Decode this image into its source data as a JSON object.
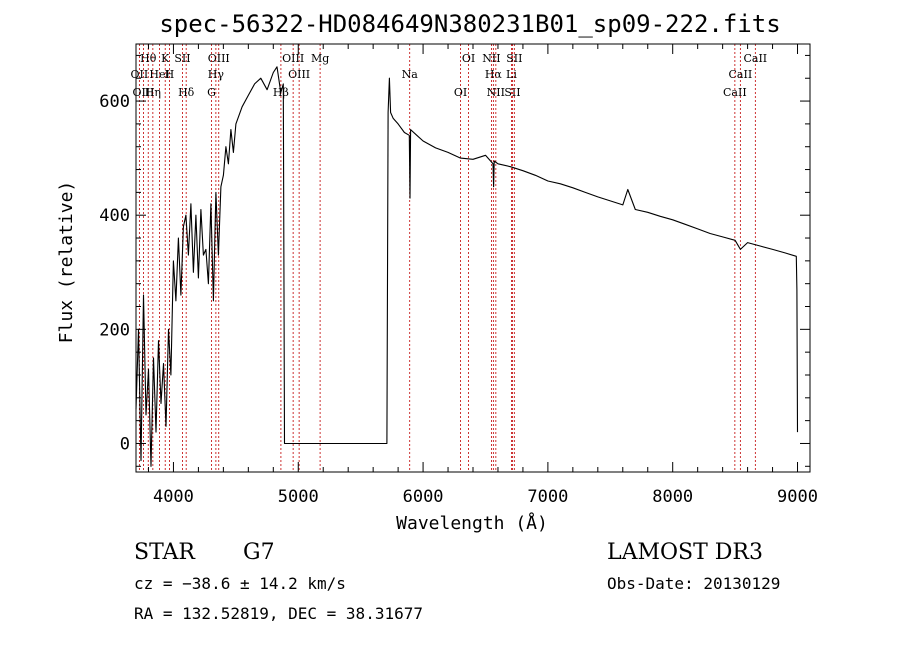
{
  "chart_data": {
    "type": "line",
    "title": "spec-56322-HD084649N380231B01_sp09-222.fits",
    "xlabel": "Wavelength (Å)",
    "ylabel": "Flux (relative)",
    "xlim": [
      3700,
      9100
    ],
    "ylim": [
      -50,
      700
    ],
    "xticks": [
      4000,
      5000,
      6000,
      7000,
      8000,
      9000
    ],
    "yticks": [
      0,
      200,
      400,
      600
    ],
    "grid": false,
    "series": [
      {
        "x": [
          3700,
          3720,
          3740,
          3760,
          3780,
          3800,
          3820,
          3840,
          3860,
          3880,
          3900,
          3920,
          3940,
          3960,
          3980,
          4000,
          4020,
          4040,
          4060,
          4080,
          4100,
          4120,
          4140,
          4160,
          4180,
          4200,
          4220,
          4240,
          4260,
          4280,
          4300,
          4320,
          4340,
          4360,
          4380,
          4400,
          4420,
          4440,
          4460,
          4480,
          4500,
          4550,
          4600,
          4650,
          4700,
          4750,
          4800,
          4830,
          4860,
          4880,
          4890,
          5000,
          5200,
          5400,
          5600,
          5710,
          5720,
          5730,
          5740,
          5760,
          5800,
          5850,
          5890,
          5895,
          5900,
          5950,
          6000,
          6100,
          6200,
          6300,
          6400,
          6500,
          6560,
          6565,
          6570,
          6600,
          6700,
          6800,
          6900,
          7000,
          7100,
          7200,
          7300,
          7400,
          7500,
          7600,
          7640,
          7700,
          7800,
          7900,
          8000,
          8100,
          8200,
          8300,
          8400,
          8500,
          8542,
          8600,
          8700,
          8800,
          8900,
          8990,
          8995,
          9000
        ],
        "values": [
          60,
          200,
          -30,
          260,
          50,
          130,
          -40,
          150,
          20,
          180,
          70,
          140,
          30,
          200,
          120,
          320,
          250,
          360,
          260,
          380,
          400,
          330,
          420,
          300,
          400,
          290,
          410,
          330,
          340,
          280,
          420,
          250,
          440,
          330,
          450,
          470,
          520,
          490,
          550,
          510,
          560,
          590,
          610,
          630,
          640,
          620,
          650,
          660,
          615,
          630,
          0,
          0,
          0,
          0,
          0,
          0,
          580,
          640,
          580,
          570,
          560,
          545,
          540,
          430,
          550,
          540,
          530,
          518,
          510,
          500,
          498,
          505,
          490,
          450,
          495,
          490,
          485,
          478,
          470,
          460,
          455,
          448,
          440,
          432,
          425,
          418,
          445,
          410,
          405,
          398,
          392,
          384,
          376,
          368,
          362,
          356,
          340,
          352,
          346,
          340,
          334,
          328,
          270,
          20
        ]
      }
    ],
    "line_markers": [
      {
        "label": "Hθ",
        "x": 3798
      },
      {
        "label": "OII",
        "x": 3727
      },
      {
        "label": "OIII",
        "x": 3760
      },
      {
        "label": "K",
        "x": 3934
      },
      {
        "label": "HeI",
        "x": 3889
      },
      {
        "label": "Hη",
        "x": 3835
      },
      {
        "label": "SII",
        "x": 4072
      },
      {
        "label": "H",
        "x": 3968
      },
      {
        "label": "Hδ",
        "x": 4102
      },
      {
        "label": "OIII",
        "x": 4363
      },
      {
        "label": "Hγ",
        "x": 4340
      },
      {
        "label": "G",
        "x": 4305
      },
      {
        "label": "OIII",
        "x": 4959
      },
      {
        "label": "OIII",
        "x": 5007
      },
      {
        "label": "Hβ",
        "x": 4861
      },
      {
        "label": "Mg",
        "x": 5175
      },
      {
        "label": "Na",
        "x": 5893
      },
      {
        "label": "OI",
        "x": 6300
      },
      {
        "label": "OI",
        "x": 6364
      },
      {
        "label": "Hα",
        "x": 6563
      },
      {
        "label": "SII",
        "x": 6716
      },
      {
        "label": "NII",
        "x": 6548
      },
      {
        "label": "Li",
        "x": 6708
      },
      {
        "label": "NII",
        "x": 6583
      },
      {
        "label": "SII",
        "x": 6731
      },
      {
        "label": "CaII",
        "x": 8542
      },
      {
        "label": "CaII",
        "x": 8498
      },
      {
        "label": "CaII",
        "x": 8662
      }
    ]
  },
  "info": {
    "object_type": "STAR",
    "subclass": "G7",
    "survey": "LAMOST DR3",
    "redshift": "cz = −38.6 ± 14.2 km/s",
    "obs_date": "Obs-Date: 20130129",
    "coords": "RA = 132.52819, DEC =  38.31677"
  },
  "colors": {
    "line_marker": "#c00000",
    "spectrum": "#000000"
  }
}
